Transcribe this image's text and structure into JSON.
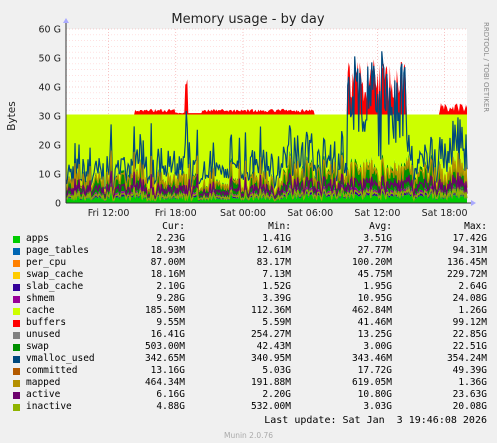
{
  "chart_data": {
    "type": "area",
    "title": "Memory usage - by day",
    "ylabel": "Bytes",
    "watermark": "RRDTOOL / TOBI OETIKER",
    "ylim": [
      0,
      60
    ],
    "y_unit": "G",
    "y_ticks": [
      "0",
      "10 G",
      "20 G",
      "30 G",
      "40 G",
      "50 G",
      "60 G"
    ],
    "x_ticks": [
      "Fri 12:00",
      "Fri 18:00",
      "Sat 00:00",
      "Sat 06:00",
      "Sat 12:00",
      "Sat 18:00"
    ],
    "x_tick_hours": [
      12,
      18,
      24,
      30,
      36,
      42
    ],
    "x_range_hours": [
      8.2,
      44.0
    ],
    "grid": true,
    "stack_approx_G": {
      "apps": 2.2,
      "page_tables": 0.02,
      "per_cpu": 0.09,
      "swap_cache": 0.02,
      "slab_cache": 2.1,
      "shmem": 9.3,
      "cache": 0.19,
      "buffers": 0.01,
      "unused": 16.4,
      "swap": 0.5,
      "vmalloc_used": 0.34,
      "committed": 13.2,
      "mapped": 0.46,
      "active": 6.2,
      "inactive": 4.9
    }
  },
  "legend": {
    "headers": [
      "Cur:",
      "Min:",
      "Avg:",
      "Max:"
    ],
    "series": [
      {
        "name": "apps",
        "color": "#00cc00",
        "cur": "2.23G",
        "min": "1.41G",
        "avg": "3.51G",
        "max": "17.42G"
      },
      {
        "name": "page_tables",
        "color": "#0066b3",
        "cur": "18.93M",
        "min": "12.61M",
        "avg": "27.77M",
        "max": "94.31M"
      },
      {
        "name": "per_cpu",
        "color": "#ff8000",
        "cur": "87.00M",
        "min": "83.17M",
        "avg": "100.20M",
        "max": "136.45M"
      },
      {
        "name": "swap_cache",
        "color": "#ffcc00",
        "cur": "18.16M",
        "min": "7.13M",
        "avg": "45.75M",
        "max": "229.72M"
      },
      {
        "name": "slab_cache",
        "color": "#330099",
        "cur": "2.10G",
        "min": "1.52G",
        "avg": "1.95G",
        "max": "2.64G"
      },
      {
        "name": "shmem",
        "color": "#990099",
        "cur": "9.28G",
        "min": "3.39G",
        "avg": "10.95G",
        "max": "24.08G"
      },
      {
        "name": "cache",
        "color": "#ccff00",
        "cur": "185.50M",
        "min": "112.36M",
        "avg": "462.84M",
        "max": "1.26G"
      },
      {
        "name": "buffers",
        "color": "#ff0000",
        "cur": "9.55M",
        "min": "5.59M",
        "avg": "41.46M",
        "max": "99.12M"
      },
      {
        "name": "unused",
        "color": "#808080",
        "cur": "16.41G",
        "min": "254.27M",
        "avg": "13.25G",
        "max": "22.85G"
      },
      {
        "name": "swap",
        "color": "#008f00",
        "cur": "503.00M",
        "min": "42.43M",
        "avg": "3.00G",
        "max": "22.51G"
      },
      {
        "name": "vmalloc_used",
        "color": "#00487d",
        "cur": "342.65M",
        "min": "340.95M",
        "avg": "343.46M",
        "max": "354.24M"
      },
      {
        "name": "committed",
        "color": "#b35a00",
        "cur": "13.16G",
        "min": "5.03G",
        "avg": "17.72G",
        "max": "49.39G"
      },
      {
        "name": "mapped",
        "color": "#b38f00",
        "cur": "464.34M",
        "min": "191.88M",
        "avg": "619.05M",
        "max": "1.36G"
      },
      {
        "name": "active",
        "color": "#6b006b",
        "cur": "6.16G",
        "min": "2.20G",
        "avg": "10.80G",
        "max": "23.63G"
      },
      {
        "name": "inactive",
        "color": "#8fb300",
        "cur": "4.88G",
        "min": "532.00M",
        "avg": "3.03G",
        "max": "20.08G"
      }
    ]
  },
  "footer": {
    "last_update": "Last update: Sat Jan  3 19:46:08 2026",
    "version": "Munin 2.0.76"
  }
}
